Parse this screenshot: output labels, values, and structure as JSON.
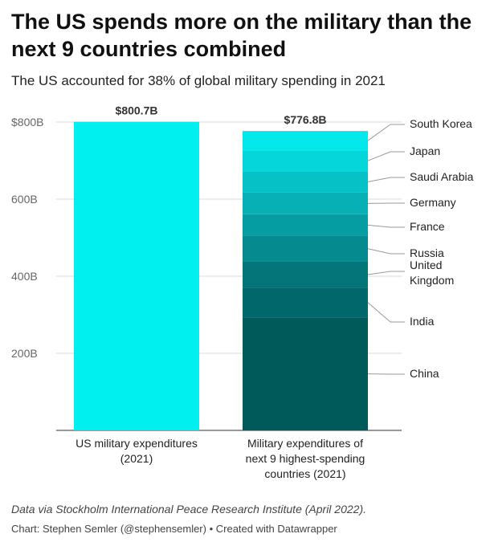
{
  "title": "The US spends more on the military than the next 9 countries combined",
  "subtitle": "The US accounted for 38% of global military spending in 2021",
  "source_note": "Data via Stockholm International Peace Research Institute (April 2022).",
  "credit": "Chart: Stephen Semler (@stephensemler) • Created with Datawrapper",
  "chart_data": {
    "type": "bar",
    "stacked": true,
    "ylim": [
      0,
      800
    ],
    "y_ticks": [
      {
        "value": 200,
        "label": "200B"
      },
      {
        "value": 400,
        "label": "400B"
      },
      {
        "value": 600,
        "label": "600B"
      },
      {
        "value": 800,
        "label": "$800B"
      }
    ],
    "grid": true,
    "categories": [
      {
        "label_lines": [
          "US military expenditures",
          "(2021)"
        ],
        "total_label": "$800.7B"
      },
      {
        "label_lines": [
          "Military expenditures of",
          "next 9 highest-spending",
          "countries (2021)"
        ],
        "total_label": "$776.8B"
      }
    ],
    "us_bar": {
      "value": 800.7,
      "color": "#00f0f0"
    },
    "stack": [
      {
        "name": "China",
        "value": 293.4,
        "color": "#005a5a",
        "label_lines": [
          "China"
        ]
      },
      {
        "name": "India",
        "value": 76.6,
        "color": "#02676b",
        "label_lines": [
          "India"
        ]
      },
      {
        "name": "United Kingdom",
        "value": 68.4,
        "color": "#04767a",
        "label_lines": [
          "United",
          "Kingdom"
        ]
      },
      {
        "name": "Russia",
        "value": 65.9,
        "color": "#048a8f",
        "label_lines": [
          "Russia"
        ]
      },
      {
        "name": "France",
        "value": 56.6,
        "color": "#059da2",
        "label_lines": [
          "France"
        ]
      },
      {
        "name": "Germany",
        "value": 56.0,
        "color": "#07b0b5",
        "label_lines": [
          "Germany"
        ]
      },
      {
        "name": "Saudi Arabia",
        "value": 55.6,
        "color": "#06c2c7",
        "label_lines": [
          "Saudi Arabia"
        ]
      },
      {
        "name": "Japan",
        "value": 54.1,
        "color": "#05d6da",
        "label_lines": [
          "Japan"
        ]
      },
      {
        "name": "South Korea",
        "value": 50.2,
        "color": "#04e8ec",
        "label_lines": [
          "South Korea"
        ]
      }
    ]
  }
}
